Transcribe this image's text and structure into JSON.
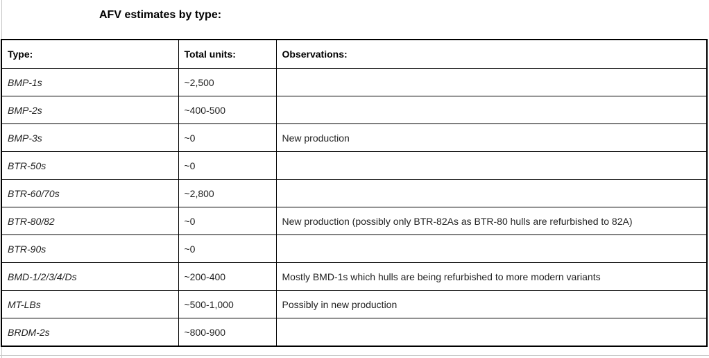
{
  "title": "AFV estimates by type:",
  "colors": {
    "table_border": "#000000",
    "text": "#1f1f1f",
    "page_gridline": "#c6c6c6",
    "background": "#ffffff"
  },
  "table": {
    "headers": {
      "type": "Type:",
      "total_units": "Total units:",
      "observations": "Observations:"
    },
    "rows": [
      {
        "type": "BMP-1s",
        "total_units": "~2,500",
        "observations": ""
      },
      {
        "type": "BMP-2s",
        "total_units": "~400-500",
        "observations": ""
      },
      {
        "type": "BMP-3s",
        "total_units": "~0",
        "observations": "New production"
      },
      {
        "type": "BTR-50s",
        "total_units": "~0",
        "observations": ""
      },
      {
        "type": "BTR-60/70s",
        "total_units": "~2,800",
        "observations": ""
      },
      {
        "type": "BTR-80/82",
        "total_units": "~0",
        "observations": "New production (possibly only BTR-82As as BTR-80 hulls are refurbished to 82A)"
      },
      {
        "type": "BTR-90s",
        "total_units": "~0",
        "observations": ""
      },
      {
        "type": "BMD-1/2/3/4/Ds",
        "total_units": "~200-400",
        "observations": "Mostly BMD-1s which hulls are being refurbished to more modern variants"
      },
      {
        "type": "MT-LBs",
        "total_units": "~500-1,000",
        "observations": "Possibly in new production"
      },
      {
        "type": "BRDM-2s",
        "total_units": "~800-900",
        "observations": ""
      }
    ]
  }
}
